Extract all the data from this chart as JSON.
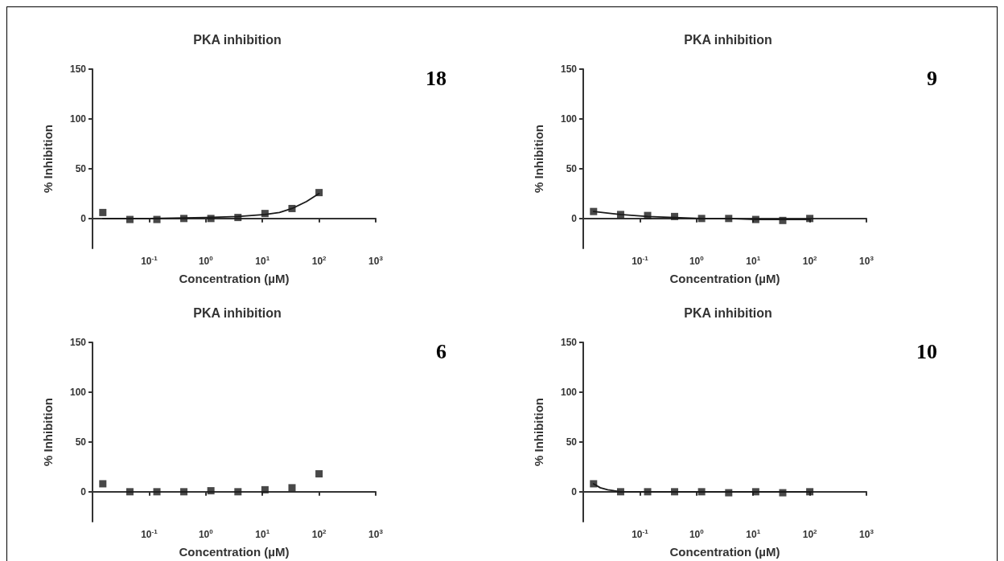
{
  "chart_data": [
    {
      "type": "scatter",
      "title": "PKA inhibition",
      "xlabel": "Concentration (µM)",
      "ylabel": "% Inhibition",
      "annotations": [
        "18"
      ],
      "log": "x",
      "xlim": [
        0.01,
        1000
      ],
      "ylim": [
        -30,
        150
      ],
      "xticks": [
        {
          "value": 0.1,
          "label": "10$^{-1}$"
        },
        {
          "value": 1,
          "label": "10$^{0}$"
        },
        {
          "value": 10,
          "label": "10$^{1}$"
        },
        {
          "value": 100,
          "label": "10$^{2}$"
        },
        {
          "value": 1000,
          "label": "10$^{3}$"
        }
      ],
      "yticks": [
        0,
        50,
        100,
        150
      ],
      "series": [
        {
          "marker": "square",
          "color": "#1a1a1a",
          "x": [
            0.0152,
            0.0457,
            0.137,
            0.41,
            1.23,
            3.7,
            11.1,
            33.3,
            100
          ],
          "values": [
            6,
            -1,
            -1,
            0,
            0,
            1,
            5,
            10,
            26
          ]
        },
        {
          "type": "line",
          "marker": "none",
          "line_style": "solid",
          "color": "#1a1a1a",
          "x": [
            0.0152,
            0.1,
            1,
            3.7,
            11.1,
            20,
            33.3,
            60,
            100
          ],
          "values": [
            0,
            0,
            1,
            2,
            4,
            6,
            10,
            17,
            25
          ]
        }
      ]
    },
    {
      "type": "scatter",
      "title": "PKA inhibition",
      "xlabel": "Concentration (µM)",
      "ylabel": "% Inhibition",
      "annotations": [
        "9"
      ],
      "log": "x",
      "xlim": [
        0.01,
        1000
      ],
      "ylim": [
        -30,
        150
      ],
      "xticks": [
        {
          "value": 0.1,
          "label": "10$^{-1}$"
        },
        {
          "value": 1,
          "label": "10$^{0}$"
        },
        {
          "value": 10,
          "label": "10$^{1}$"
        },
        {
          "value": 100,
          "label": "10$^{2}$"
        },
        {
          "value": 1000,
          "label": "10$^{3}$"
        }
      ],
      "yticks": [
        0,
        50,
        100,
        150
      ],
      "series": [
        {
          "marker": "square",
          "color": "#1a1a1a",
          "x": [
            0.0152,
            0.0457,
            0.137,
            0.41,
            1.23,
            3.7,
            11.1,
            33.3,
            100
          ],
          "values": [
            7,
            4,
            3,
            2,
            0,
            0,
            -1,
            -2,
            0
          ]
        },
        {
          "type": "line",
          "marker": "none",
          "line_style": "solid",
          "color": "#1a1a1a",
          "x": [
            0.0152,
            0.0457,
            0.137,
            0.41,
            1.23,
            3.7,
            11.1,
            33.3,
            100
          ],
          "values": [
            7,
            4,
            2,
            1,
            0,
            0,
            -1,
            -1,
            -1
          ]
        }
      ]
    },
    {
      "type": "scatter",
      "title": "PKA inhibition",
      "xlabel": "Concentration (µM)",
      "ylabel": "% Inhibition",
      "annotations": [
        "6"
      ],
      "log": "x",
      "xlim": [
        0.01,
        1000
      ],
      "ylim": [
        -30,
        150
      ],
      "xticks": [
        {
          "value": 0.1,
          "label": "10$^{-1}$"
        },
        {
          "value": 1,
          "label": "10$^{0}$"
        },
        {
          "value": 10,
          "label": "10$^{1}$"
        },
        {
          "value": 100,
          "label": "10$^{2}$"
        },
        {
          "value": 1000,
          "label": "10$^{3}$"
        }
      ],
      "yticks": [
        0,
        50,
        100,
        150
      ],
      "series": [
        {
          "marker": "square",
          "color": "#1a1a1a",
          "x": [
            0.0152,
            0.0457,
            0.137,
            0.41,
            1.23,
            3.7,
            11.1,
            33.3,
            100
          ],
          "values": [
            8,
            0,
            0,
            0,
            1,
            0,
            2,
            4,
            18
          ]
        }
      ]
    },
    {
      "type": "scatter",
      "title": "PKA inhibition",
      "xlabel": "Concentration (µM)",
      "ylabel": "% Inhibition",
      "annotations": [
        "10"
      ],
      "log": "x",
      "xlim": [
        0.01,
        1000
      ],
      "ylim": [
        -30,
        150
      ],
      "xticks": [
        {
          "value": 0.1,
          "label": "10$^{-1}$"
        },
        {
          "value": 1,
          "label": "10$^{0}$"
        },
        {
          "value": 10,
          "label": "10$^{1}$"
        },
        {
          "value": 100,
          "label": "10$^{2}$"
        },
        {
          "value": 1000,
          "label": "10$^{3}$"
        }
      ],
      "yticks": [
        0,
        50,
        100,
        150
      ],
      "series": [
        {
          "marker": "square",
          "color": "#1a1a1a",
          "x": [
            0.0152,
            0.0457,
            0.137,
            0.41,
            1.23,
            3.7,
            11.1,
            33.3,
            100
          ],
          "values": [
            8,
            0,
            0,
            0,
            0,
            -1,
            0,
            -1,
            0
          ]
        },
        {
          "type": "line",
          "marker": "none",
          "line_style": "solid",
          "color": "#1a1a1a",
          "x": [
            0.0152,
            0.02,
            0.027,
            0.0457,
            0.137,
            100
          ],
          "values": [
            8,
            4,
            2,
            0,
            0,
            0
          ]
        }
      ]
    }
  ]
}
